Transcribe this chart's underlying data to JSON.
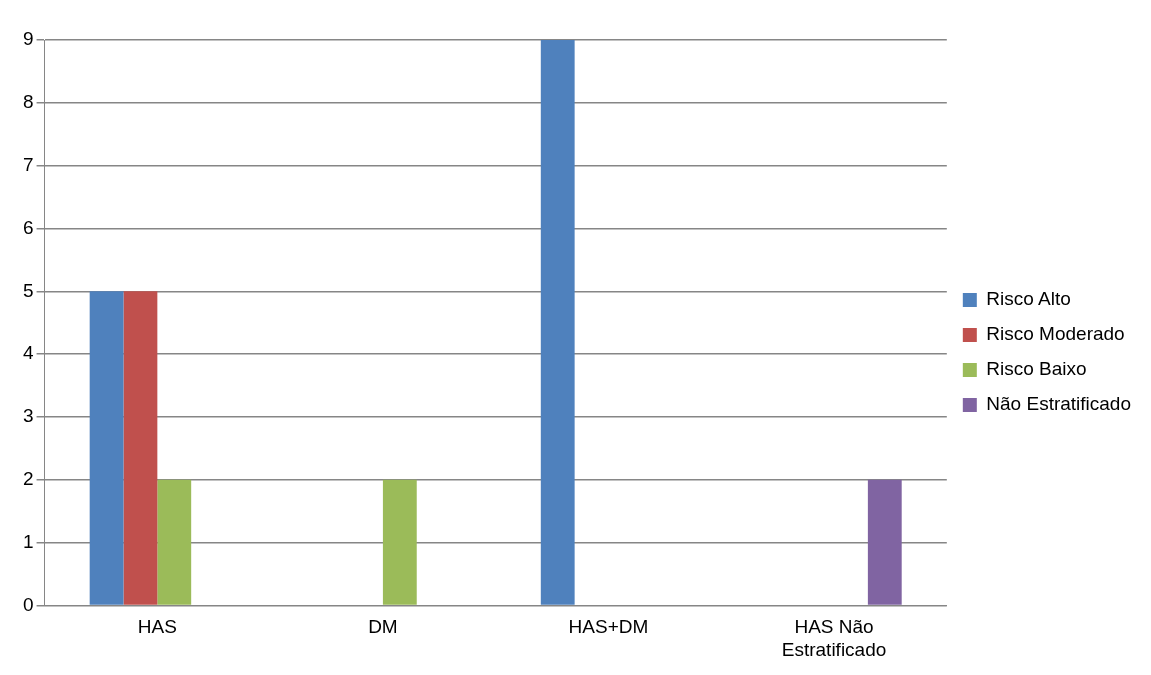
{
  "chart_data": {
    "type": "bar",
    "categories": [
      "HAS",
      "DM",
      "HAS+DM",
      "HAS Não Estratificado"
    ],
    "series": [
      {
        "name": "Risco Alto",
        "color": "#4f81bd",
        "values": [
          5,
          0,
          9,
          null
        ]
      },
      {
        "name": "Risco Moderado",
        "color": "#c0504d",
        "values": [
          5,
          0,
          null,
          null
        ]
      },
      {
        "name": "Risco Baixo",
        "color": "#9bbb59",
        "values": [
          2,
          2,
          null,
          null
        ]
      },
      {
        "name": "Não Estratificado",
        "color": "#8064a2",
        "values": [
          null,
          null,
          null,
          2
        ]
      }
    ],
    "ylim": [
      0,
      9
    ],
    "yticks": [
      0,
      1,
      2,
      3,
      4,
      5,
      6,
      7,
      8,
      9
    ],
    "grid": "y",
    "legend": "right"
  }
}
